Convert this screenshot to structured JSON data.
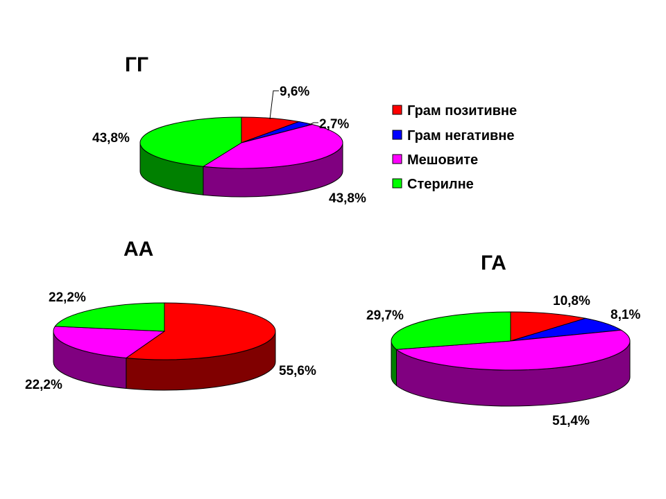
{
  "chart_data": [
    {
      "type": "pie",
      "title": "ГГ",
      "series": [
        {
          "name": "Грам позитивне",
          "value": 9.6,
          "label": "9,6%"
        },
        {
          "name": "Грам негативне",
          "value": 2.7,
          "label": "2,7%"
        },
        {
          "name": "Мешовите",
          "value": 43.8,
          "label": "43,8%"
        },
        {
          "name": "Стерилне",
          "value": 43.8,
          "label": "43,8%"
        }
      ]
    },
    {
      "type": "pie",
      "title": "АА",
      "series": [
        {
          "name": "Грам позитивне",
          "value": 55.6,
          "label": "55,6%"
        },
        {
          "name": "Мешовите",
          "value": 22.2,
          "label": "22,2%"
        },
        {
          "name": "Стерилне",
          "value": 22.2,
          "label": "22,2%"
        }
      ]
    },
    {
      "type": "pie",
      "title": "ГА",
      "series": [
        {
          "name": "Грам позитивне",
          "value": 10.8,
          "label": "10,8%"
        },
        {
          "name": "Грам негативне",
          "value": 8.1,
          "label": "8,1%"
        },
        {
          "name": "Мешовите",
          "value": 51.4,
          "label": "51,4%"
        },
        {
          "name": "Стерилне",
          "value": 29.7,
          "label": "29,7%"
        }
      ]
    }
  ],
  "legend": {
    "placement": "right of ГГ chart",
    "items": [
      {
        "name": "Грам позитивне",
        "color": "#ff0000",
        "side_color": "#800000"
      },
      {
        "name": "Грам негативне",
        "color": "#0000ff",
        "side_color": "#000080"
      },
      {
        "name": "Мешовите",
        "color": "#ff00ff",
        "side_color": "#800080"
      },
      {
        "name": "Стерилне",
        "color": "#00ff00",
        "side_color": "#008000"
      }
    ]
  }
}
